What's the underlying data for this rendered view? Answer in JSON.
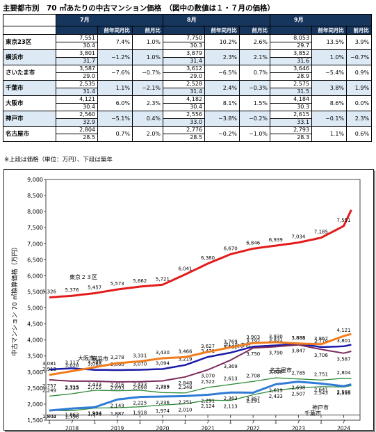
{
  "title": "主要都市別　70 ㎡あたりの中古マンション価格　（図中の数値は１・７月の価格）",
  "table": {
    "months": [
      "7月",
      "8月",
      "9月"
    ],
    "subheaders": [
      "前年同月比",
      "前月比"
    ],
    "rows": [
      {
        "city": "東京23区",
        "m": [
          {
            "price": "7,551",
            "age": "30.4",
            "yoy": "7.4%",
            "mom": "1.0%"
          },
          {
            "price": "7,750",
            "age": "30.3",
            "yoy": "10.2%",
            "mom": "2.6%"
          },
          {
            "price": "8,053",
            "age": "29.7",
            "yoy": "13.5%",
            "mom": "3.9%"
          }
        ]
      },
      {
        "city": "横浜市",
        "m": [
          {
            "price": "3,801",
            "age": "31.7",
            "yoy": "−1.2%",
            "mom": "1.0%"
          },
          {
            "price": "3,879",
            "age": "31.4",
            "yoy": "2.3%",
            "mom": "2.1%"
          },
          {
            "price": "3,852",
            "age": "31.6",
            "yoy": "1.0%",
            "mom": "−0.7%"
          }
        ]
      },
      {
        "city": "さいたま市",
        "m": [
          {
            "price": "3,587",
            "age": "29.0",
            "yoy": "−7.6%",
            "mom": "−0.7%"
          },
          {
            "price": "3,612",
            "age": "29.0",
            "yoy": "−6.5%",
            "mom": "0.7%"
          },
          {
            "price": "3,646",
            "age": "28.9",
            "yoy": "−5.4%",
            "mom": "0.9%"
          }
        ]
      },
      {
        "city": "千葉市",
        "m": [
          {
            "price": "2,535",
            "age": "31.4",
            "yoy": "1.1%",
            "mom": "−2.1%"
          },
          {
            "price": "2,528",
            "age": "31.4",
            "yoy": "2.4%",
            "mom": "−0.3%"
          },
          {
            "price": "2,575",
            "age": "31.5",
            "yoy": "3.8%",
            "mom": "1.9%"
          }
        ]
      },
      {
        "city": "大阪市",
        "m": [
          {
            "price": "4,121",
            "age": "30.4",
            "yoy": "6.0%",
            "mom": "2.3%"
          },
          {
            "price": "4,182",
            "age": "30.4",
            "yoy": "8.1%",
            "mom": "1.5%"
          },
          {
            "price": "4,184",
            "age": "30.3",
            "yoy": "8.6%",
            "mom": "0.0%"
          }
        ]
      },
      {
        "city": "神戸市",
        "m": [
          {
            "price": "2,560",
            "age": "32.9",
            "yoy": "−5.1%",
            "mom": "0.4%"
          },
          {
            "price": "2,556",
            "age": "33.0",
            "yoy": "−3.8%",
            "mom": "−0.2%"
          },
          {
            "price": "2,615",
            "age": "33.1",
            "yoy": "−0.1%",
            "mom": "2.3%"
          }
        ]
      },
      {
        "city": "名古屋市",
        "m": [
          {
            "price": "2,804",
            "age": "28.5",
            "yoy": "0.7%",
            "mom": "2.0%"
          },
          {
            "price": "2,776",
            "age": "28.5",
            "yoy": "−0.2%",
            "mom": "−1.0%"
          },
          {
            "price": "2,793",
            "age": "28.3",
            "yoy": "1.1%",
            "mom": "0.6%"
          }
        ]
      }
    ]
  },
  "note": "※上段は価格（単位：万円）、下段は築年",
  "chart_data": {
    "type": "line",
    "ylabel": "中古マンション 70 ㎡換算価格（万円）",
    "ylim": [
      1500,
      9000
    ],
    "yticks": [
      "1,500",
      "2,000",
      "2,500",
      "3,000",
      "3,500",
      "4,000",
      "4,500",
      "5,000",
      "5,500",
      "6,000",
      "6,500",
      "7,000",
      "7,500",
      "8,000",
      "8,500",
      "9,000"
    ],
    "x_tick_labels": [
      "1",
      "7",
      "1",
      "7",
      "1",
      "7",
      "1",
      "7",
      "1",
      "7",
      "1",
      "7",
      "1",
      "7"
    ],
    "year_labels": [
      "2018",
      "2019",
      "2020",
      "2021",
      "2022",
      "2023",
      "2024"
    ],
    "series": [
      {
        "name": "東京２３区",
        "color": "#e31b1b",
        "width": 3,
        "points": [
          [
            0,
            5326
          ],
          [
            6,
            5376
          ],
          [
            12,
            5457
          ],
          [
            18,
            5573
          ],
          [
            24,
            5662
          ],
          [
            30,
            5721
          ],
          [
            36,
            6041
          ],
          [
            42,
            6380
          ],
          [
            48,
            6670
          ],
          [
            54,
            6846
          ],
          [
            60,
            6939
          ],
          [
            66,
            7034
          ],
          [
            72,
            7185
          ],
          [
            78,
            7551
          ],
          [
            80,
            8053
          ]
        ],
        "labels": [
          "5,326",
          "5,376",
          "5,457",
          "5,573",
          "5,662",
          "5,721",
          "6,041",
          "6,380",
          "6,670",
          "6,846",
          "6,939",
          "7,034",
          "7,185",
          "7,551"
        ]
      },
      {
        "name": "横浜市",
        "color": "#1a1aa8",
        "width": 2.5,
        "points": [
          [
            0,
            3081
          ],
          [
            6,
            3117
          ],
          [
            12,
            3068
          ],
          [
            18,
            3060
          ],
          [
            24,
            3070
          ],
          [
            30,
            3094
          ],
          [
            36,
            3219
          ],
          [
            42,
            3471
          ],
          [
            48,
            3602
          ],
          [
            54,
            3792
          ],
          [
            60,
            3831
          ],
          [
            66,
            3881
          ],
          [
            72,
            3778
          ],
          [
            78,
            3801
          ],
          [
            80,
            3852
          ]
        ],
        "labels": [
          "3,081",
          "3,117",
          "3,068",
          "3,060",
          "3,070",
          "3,094",
          "3,219",
          "3,471",
          "3,602",
          "3,792",
          "3,831",
          "3,881",
          "3,778",
          "3,801"
        ]
      },
      {
        "name": "さいたま市",
        "color": "#7a2b5c",
        "width": 2,
        "points": [
          [
            0,
            2757
          ],
          [
            6,
            2715
          ],
          [
            12,
            2715
          ],
          [
            18,
            2693
          ],
          [
            24,
            2698
          ],
          [
            30,
            2725
          ],
          [
            36,
            2848
          ],
          [
            42,
            3070
          ],
          [
            48,
            3369
          ],
          [
            54,
            3750
          ],
          [
            60,
            3790
          ],
          [
            66,
            3847
          ],
          [
            72,
            3706
          ],
          [
            78,
            3587
          ],
          [
            80,
            3646
          ]
        ],
        "labels": [
          "2,757",
          "2,715",
          "2,715",
          "2,693",
          "2,698",
          "2,725",
          "2,848",
          "3,070",
          "3,369",
          "3,750",
          "3,790",
          "3,847",
          "3,706",
          "3,587"
        ]
      },
      {
        "name": "千葉市",
        "color": "#2e8b3a",
        "width": 1.3,
        "points": [
          [
            0,
            1804
          ],
          [
            6,
            1796
          ],
          [
            12,
            1878
          ],
          [
            18,
            1887
          ],
          [
            24,
            1918
          ],
          [
            30,
            1974
          ],
          [
            36,
            2010
          ],
          [
            42,
            2124
          ],
          [
            48,
            2113
          ],
          [
            54,
            2291
          ],
          [
            60,
            2433
          ],
          [
            66,
            2507
          ],
          [
            72,
            2543
          ],
          [
            78,
            2535
          ],
          [
            80,
            2575
          ]
        ],
        "labels": [
          "1,804",
          "1,796",
          "1,878",
          "1,887",
          "1,918",
          "1,974",
          "2,010",
          "2,124",
          "2,113",
          "2,291",
          "2,433",
          "2,507",
          "2,543",
          "2,535"
        ]
      },
      {
        "name": "大阪市",
        "color": "#f07c1e",
        "width": 3,
        "points": [
          [
            0,
            2912
          ],
          [
            6,
            3028
          ],
          [
            12,
            3149
          ],
          [
            18,
            3278
          ],
          [
            24,
            3331
          ],
          [
            30,
            3430
          ],
          [
            36,
            3466
          ],
          [
            42,
            3627
          ],
          [
            48,
            3769
          ],
          [
            54,
            3903
          ],
          [
            60,
            3930
          ],
          [
            66,
            3888
          ],
          [
            72,
            3867
          ],
          [
            78,
            4121
          ],
          [
            80,
            4184
          ]
        ],
        "labels": [
          "2,912",
          "3,028",
          "3,149",
          "3,278",
          "3,331",
          "3,430",
          "3,466",
          "3,627",
          "3,769",
          "3,903",
          "3,930",
          "3,888",
          "3,867",
          "4,121"
        ]
      },
      {
        "name": "名古屋市",
        "color": "#2e8b3a",
        "width": 1.3,
        "points": [
          [
            0,
            2249
          ],
          [
            6,
            2323
          ],
          [
            12,
            2433
          ],
          [
            18,
            2416
          ],
          [
            24,
            2433
          ],
          [
            30,
            2359
          ],
          [
            36,
            2348
          ],
          [
            42,
            2522
          ],
          [
            48,
            2613
          ],
          [
            54,
            2708
          ],
          [
            60,
            2818
          ],
          [
            66,
            2785
          ],
          [
            72,
            2751
          ],
          [
            78,
            2804
          ],
          [
            80,
            2793
          ]
        ],
        "labels": [
          "2,249",
          "2,323",
          "2,433",
          "2,416",
          "2,433",
          "2,359",
          "2,348",
          "2,522",
          "2,613",
          "2,708",
          "2,818",
          "2,785",
          "2,751",
          "2,804"
        ]
      },
      {
        "name": "神戸市",
        "color": "#2f7bd6",
        "width": 3,
        "points": [
          [
            0,
            1802
          ],
          [
            6,
            1863
          ],
          [
            12,
            1904
          ],
          [
            18,
            2143
          ],
          [
            24,
            2225
          ],
          [
            30,
            2236
          ],
          [
            36,
            2251
          ],
          [
            42,
            2291
          ],
          [
            48,
            2363
          ],
          [
            54,
            2357
          ],
          [
            60,
            2619
          ],
          [
            66,
            2698
          ],
          [
            72,
            2641
          ],
          [
            78,
            2560
          ],
          [
            80,
            2615
          ]
        ],
        "labels": [
          "1,802",
          "1,863",
          "1,904",
          "2,143",
          "2,225",
          "2,236",
          "2,251",
          "2,291",
          "2,363",
          "2,357",
          "2,619",
          "2,698",
          "2,641",
          "2,560"
        ]
      }
    ]
  }
}
